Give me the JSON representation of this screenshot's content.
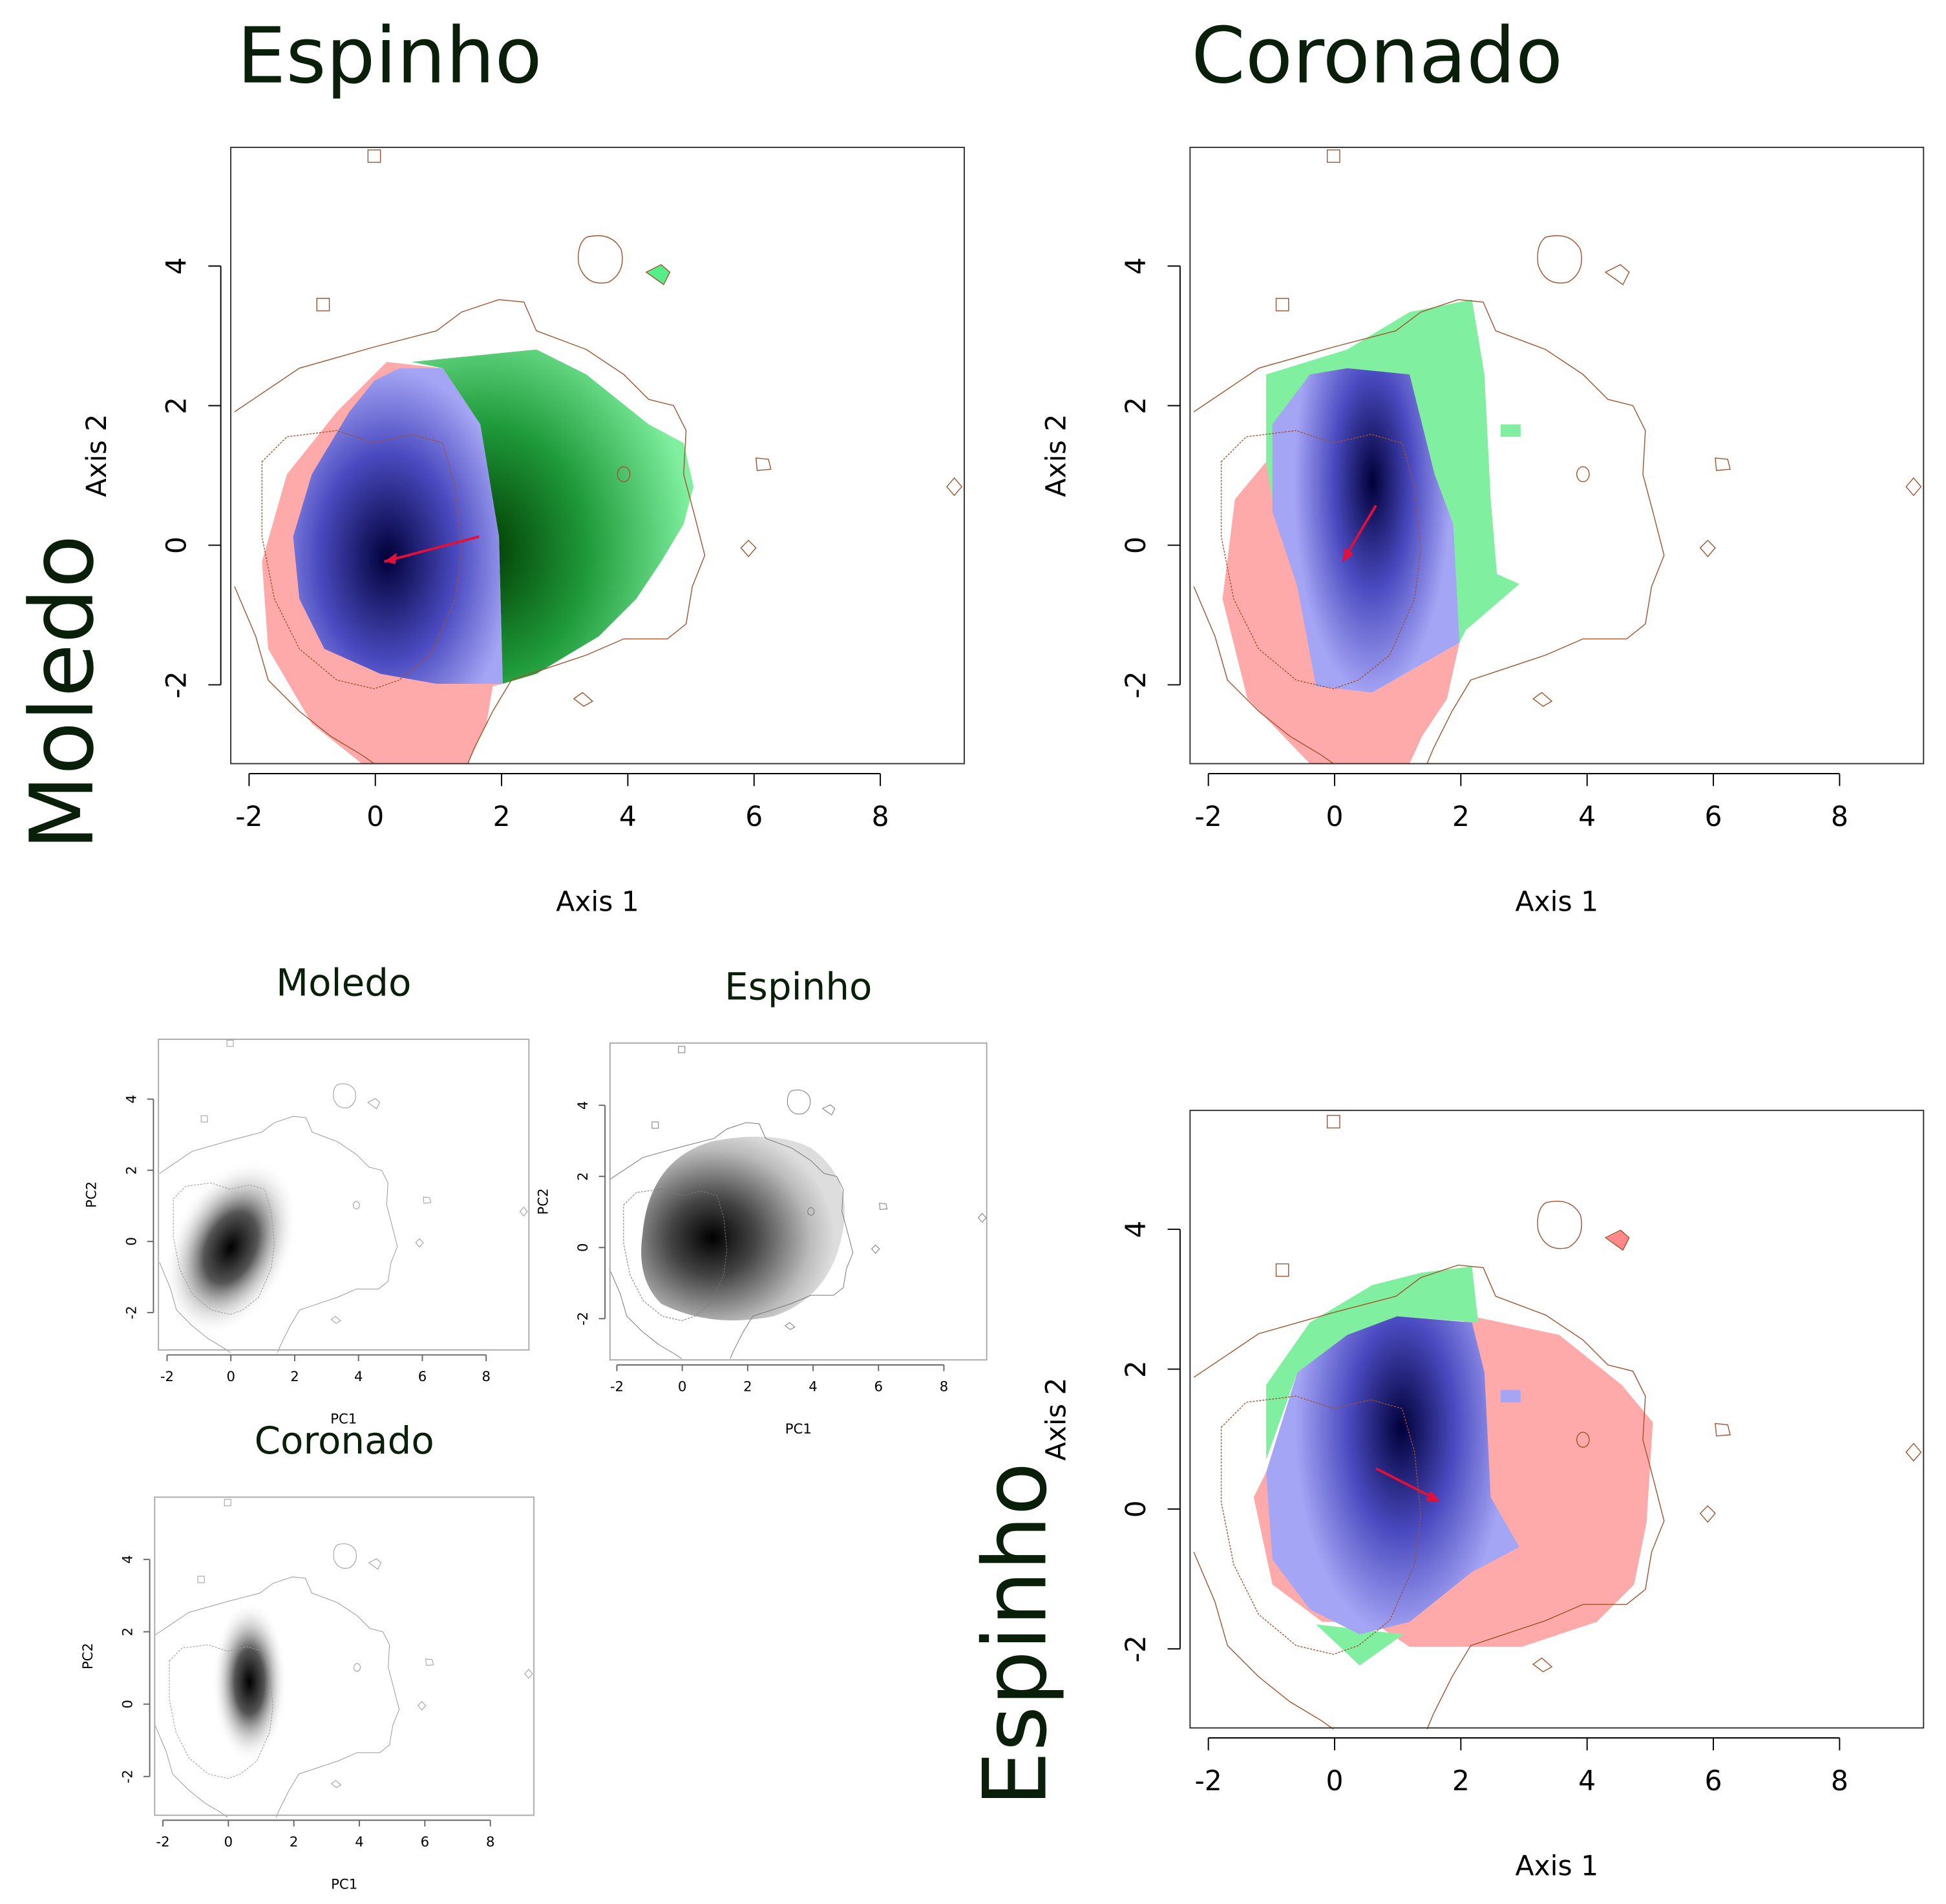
{
  "labels": {
    "col1": "Espinho",
    "col2": "Coronado",
    "row1": "Moledo",
    "row2": "Espinho"
  },
  "chart_data": [
    {
      "type": "density",
      "x_label": "Axis 1",
      "y_label": "Axis 2",
      "xlim": [
        -2.29,
        9.33
      ],
      "ylim": [
        -3.13,
        5.7
      ],
      "xticks": [
        -2,
        0,
        2,
        4,
        6,
        8
      ],
      "yticks": [
        -2,
        0,
        2,
        4
      ]
    },
    {
      "type": "density",
      "x_label": "Axis 1",
      "y_label": "Axis 2",
      "xlim": [
        -2.29,
        9.33
      ],
      "ylim": [
        -3.13,
        5.7
      ],
      "xticks": [
        -2,
        0,
        2,
        4,
        6,
        8
      ],
      "yticks": [
        -2,
        0,
        2,
        4
      ]
    },
    {
      "type": "density",
      "x_label": "Axis 1",
      "y_label": "Axis 2",
      "xlim": [
        -2.29,
        9.33
      ],
      "ylim": [
        -3.13,
        5.7
      ],
      "xticks": [
        -2,
        0,
        2,
        4,
        6,
        8
      ],
      "yticks": [
        -2,
        0,
        2,
        4
      ]
    },
    {
      "type": "density",
      "title": "Moledo",
      "x_label": "PC1",
      "y_label": "PC2",
      "xlim": [
        -2.27,
        9.34
      ],
      "ylim": [
        -3.05,
        5.68
      ],
      "xticks": [
        -2,
        0,
        2,
        4,
        6,
        8
      ],
      "yticks": [
        -2,
        0,
        2,
        4
      ]
    },
    {
      "type": "density",
      "title": "Espinho",
      "x_label": "PC1",
      "y_label": "PC2",
      "xlim": [
        -2.21,
        9.31
      ],
      "ylim": [
        -3.16,
        5.75
      ],
      "xticks": [
        -2,
        0,
        2,
        4,
        6,
        8
      ],
      "yticks": [
        -2,
        0,
        2,
        4
      ]
    },
    {
      "type": "density",
      "title": "Coronado",
      "x_label": "PC1",
      "y_label": "PC2",
      "xlim": [
        -2.25,
        9.33
      ],
      "ylim": [
        -3.07,
        5.72
      ],
      "xticks": [
        -2,
        0,
        2,
        4,
        6,
        8
      ],
      "yticks": [
        -2,
        0,
        2,
        4
      ]
    }
  ]
}
